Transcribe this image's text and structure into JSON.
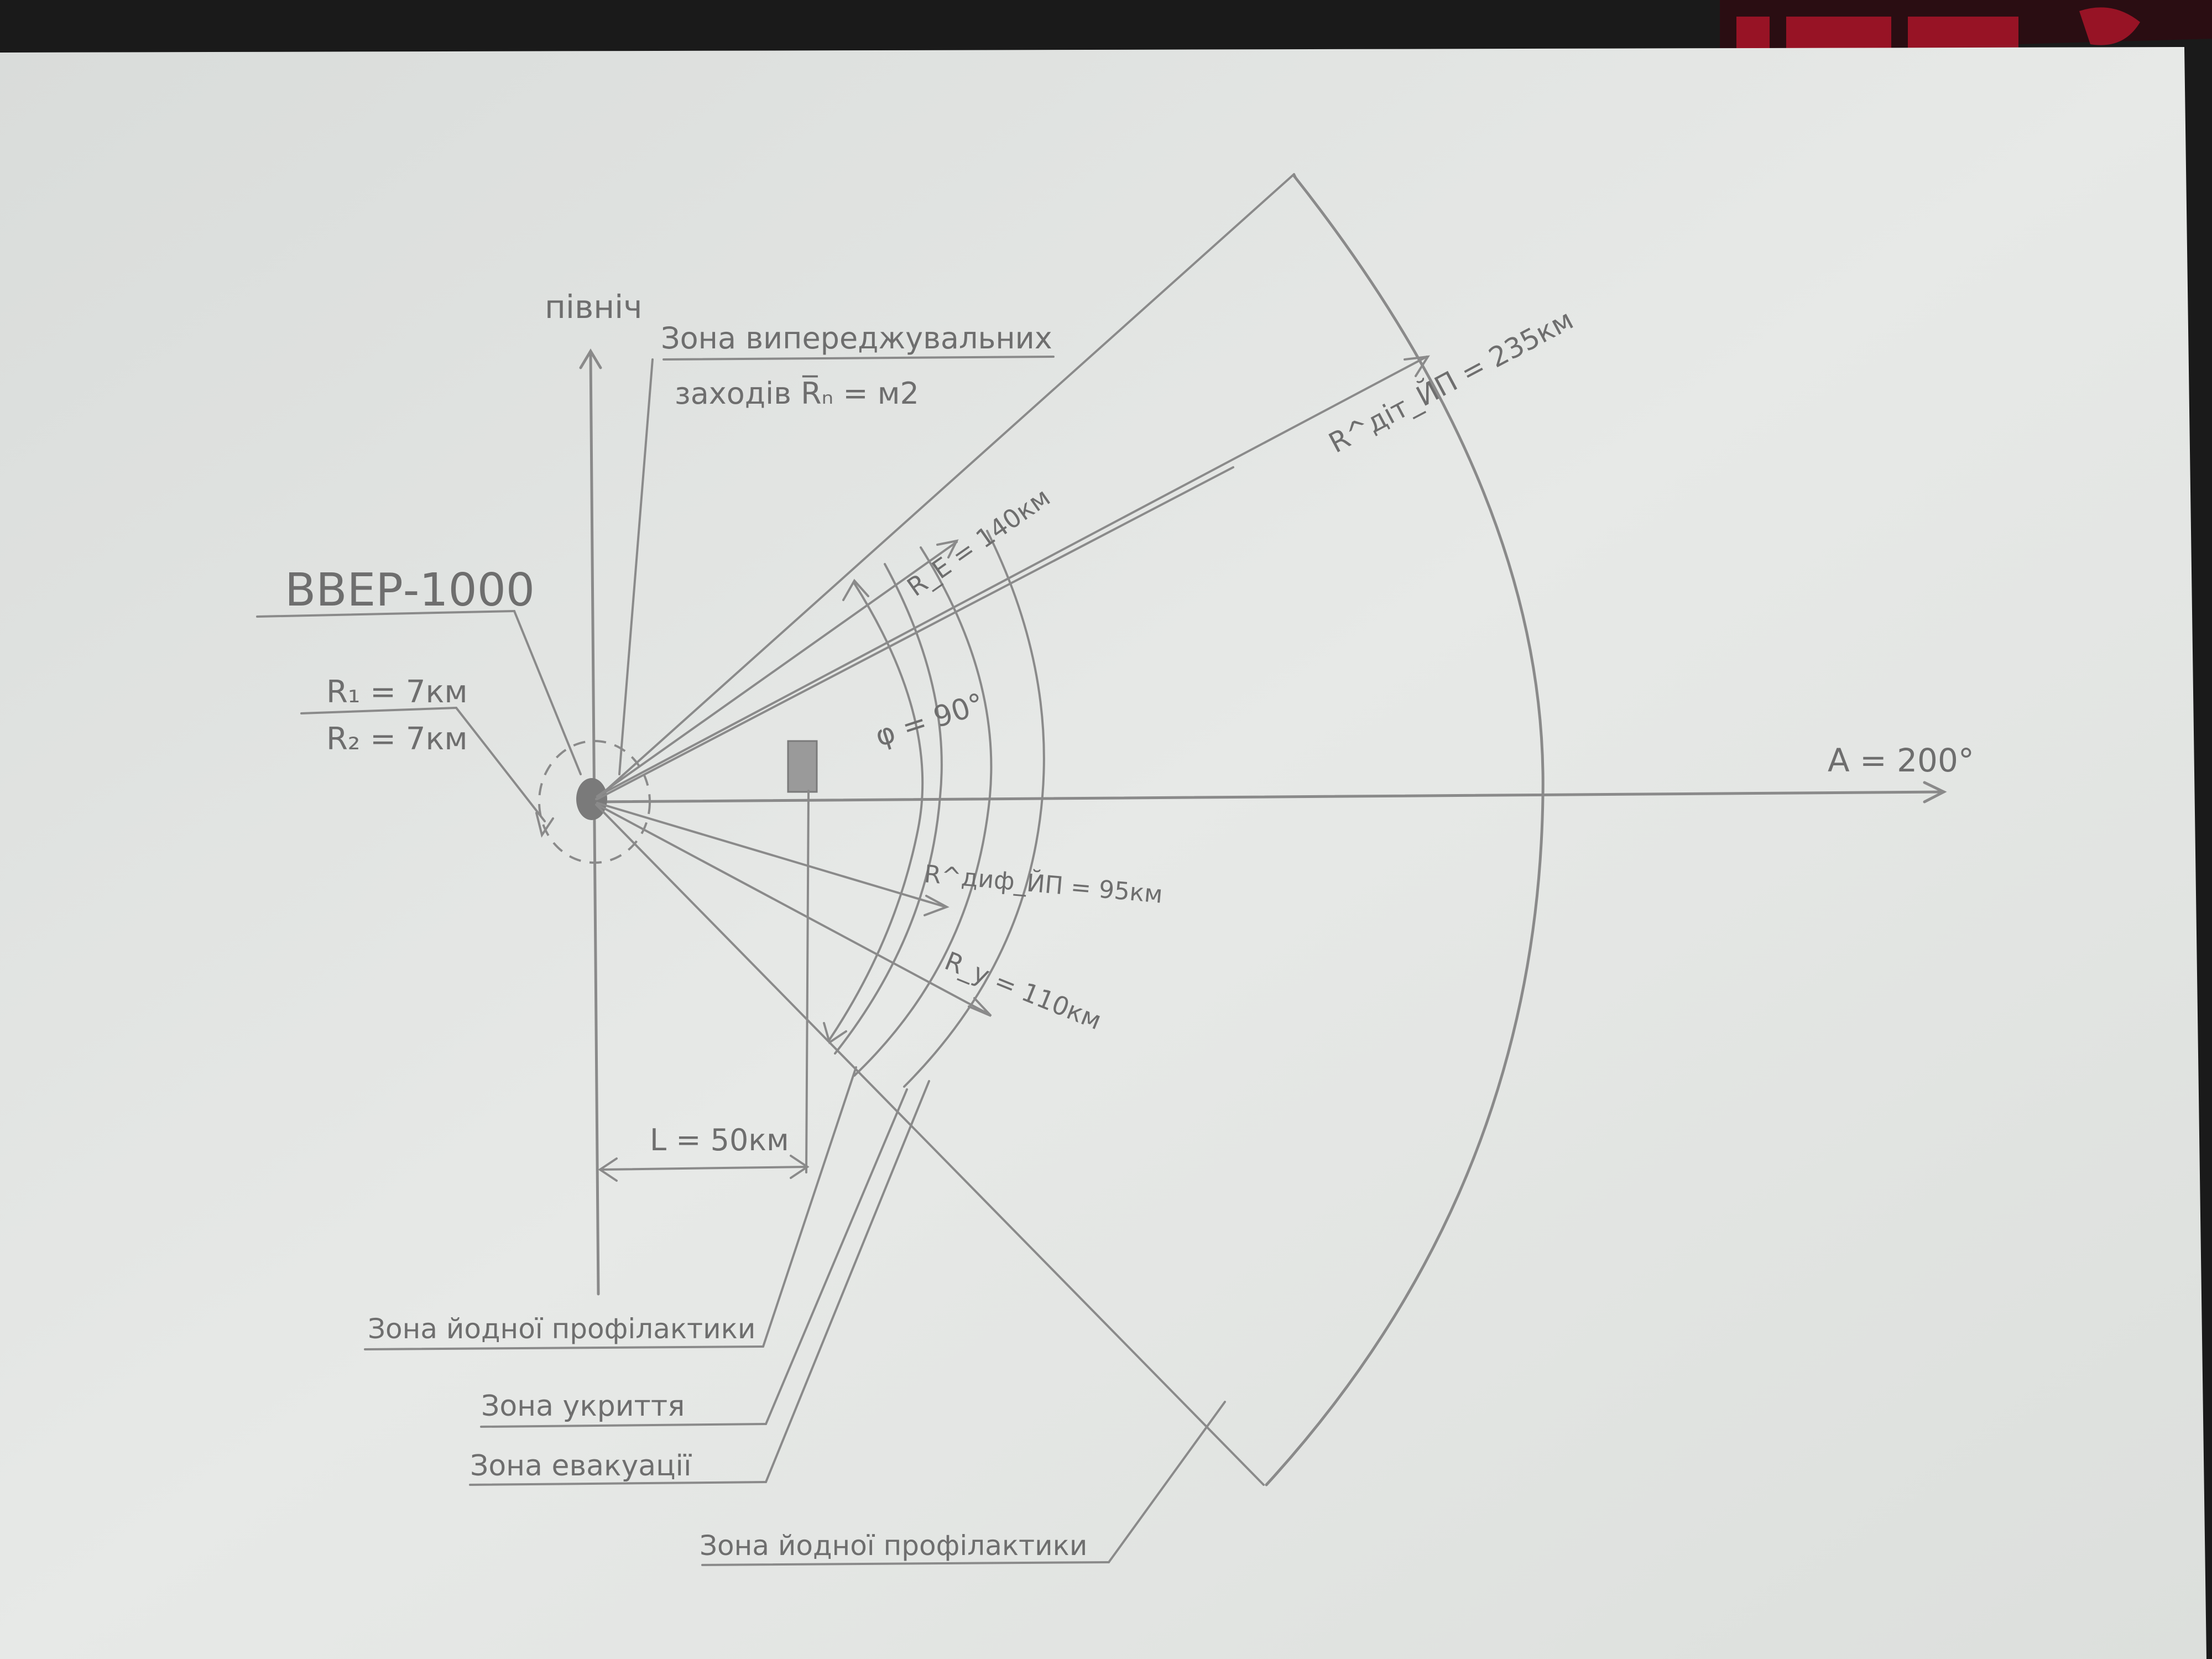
{
  "diagram": {
    "north_label": "північ",
    "reactor_label": "ВВЕР-1000",
    "r1_label": "R₁ = 7км",
    "r2_label": "R₂ = 7км",
    "advance_zone_label_line1": "Зона випереджувальних",
    "advance_zone_label_line2": "заходів R̅ₙ = м2",
    "re_label": "R_E = 140км",
    "phi_label": "φ = 90°",
    "rdif_label": "R^диф_ЙП = 95км",
    "ry_label": "R_y = 110км",
    "rdit_label": "R^діт_ЙП = 235км",
    "azimuth_label": "A = 200°",
    "distance_label": "L = 50км",
    "iodine_zone_label_1": "Зона йодної профілактики",
    "shelter_zone_label": "Зона укриття",
    "evacuation_zone_label": "Зона евакуації",
    "iodine_zone_label_2": "Зона йодної профілактики"
  },
  "colors": {
    "paper": "#e6e8e6",
    "pencil": "#8a8a8a",
    "background": "#1a1a1a",
    "logo_red": "#b3152a"
  }
}
